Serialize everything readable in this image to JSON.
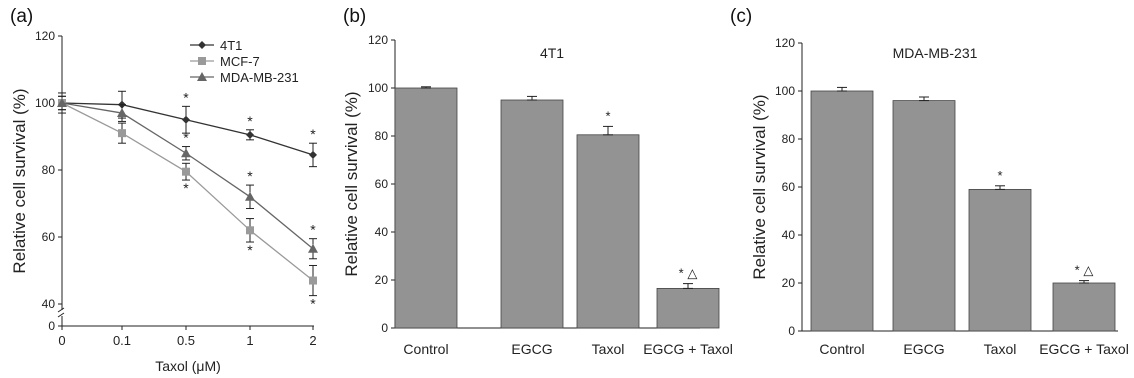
{
  "chart_data": [
    {
      "panel": "(a)",
      "type": "line",
      "title": "",
      "xlabel": "Taxol (μM)",
      "ylabel": "Relative cell survival (%)",
      "categories": [
        "0",
        "0.1",
        "0.5",
        "1",
        "2"
      ],
      "y_ticks": [
        "0",
        "40",
        "60",
        "80",
        "100",
        "120"
      ],
      "ylim": [
        40,
        120
      ],
      "axis_break": true,
      "legend_position": "top-right",
      "series": [
        {
          "name": "4T1",
          "marker": "diamond",
          "color": "#333333",
          "values": [
            100,
            99.5,
            95,
            90.5,
            84.5
          ],
          "errors": [
            3,
            4,
            4,
            1.5,
            3.5
          ],
          "significance": [
            "",
            "",
            "*",
            "*",
            "*"
          ]
        },
        {
          "name": "MCF-7",
          "marker": "square",
          "color": "#9a9a9a",
          "values": [
            100,
            91,
            79.5,
            62,
            47
          ],
          "errors": [
            2,
            3,
            2.5,
            3.5,
            4.5
          ],
          "significance": [
            "",
            "",
            "*",
            "*",
            "*"
          ]
        },
        {
          "name": "MDA-MB-231",
          "marker": "triangle",
          "color": "#666666",
          "values": [
            100,
            97,
            85,
            72,
            56.5
          ],
          "errors": [
            2,
            2.5,
            2,
            3.5,
            3
          ],
          "significance": [
            "",
            "",
            "*",
            "*",
            "*"
          ]
        }
      ]
    },
    {
      "panel": "(b)",
      "type": "bar",
      "title": "4T1",
      "xlabel": "",
      "ylabel": "Relative cell survival (%)",
      "categories": [
        "Control",
        "EGCG",
        "Taxol",
        "EGCG + Taxol"
      ],
      "values": [
        100,
        95,
        80.5,
        16.5
      ],
      "errors": [
        0.5,
        1.5,
        3.5,
        2
      ],
      "significance": [
        "",
        "",
        "*",
        "* △"
      ],
      "y_ticks": [
        "0",
        "20",
        "40",
        "60",
        "80",
        "100",
        "120"
      ],
      "ylim": [
        0,
        120
      ],
      "bar_color": "#939393"
    },
    {
      "panel": "(c)",
      "type": "bar",
      "title": "MDA-MB-231",
      "xlabel": "",
      "ylabel": "Relative cell survival (%)",
      "categories": [
        "Control",
        "EGCG",
        "Taxol",
        "EGCG + Taxol"
      ],
      "values": [
        100,
        96,
        59,
        20
      ],
      "errors": [
        1.5,
        1.5,
        1.5,
        1
      ],
      "significance": [
        "",
        "",
        "*",
        "* △"
      ],
      "y_ticks": [
        "0",
        "20",
        "40",
        "60",
        "80",
        "100",
        "120"
      ],
      "ylim": [
        0,
        120
      ],
      "bar_color": "#939393"
    }
  ]
}
